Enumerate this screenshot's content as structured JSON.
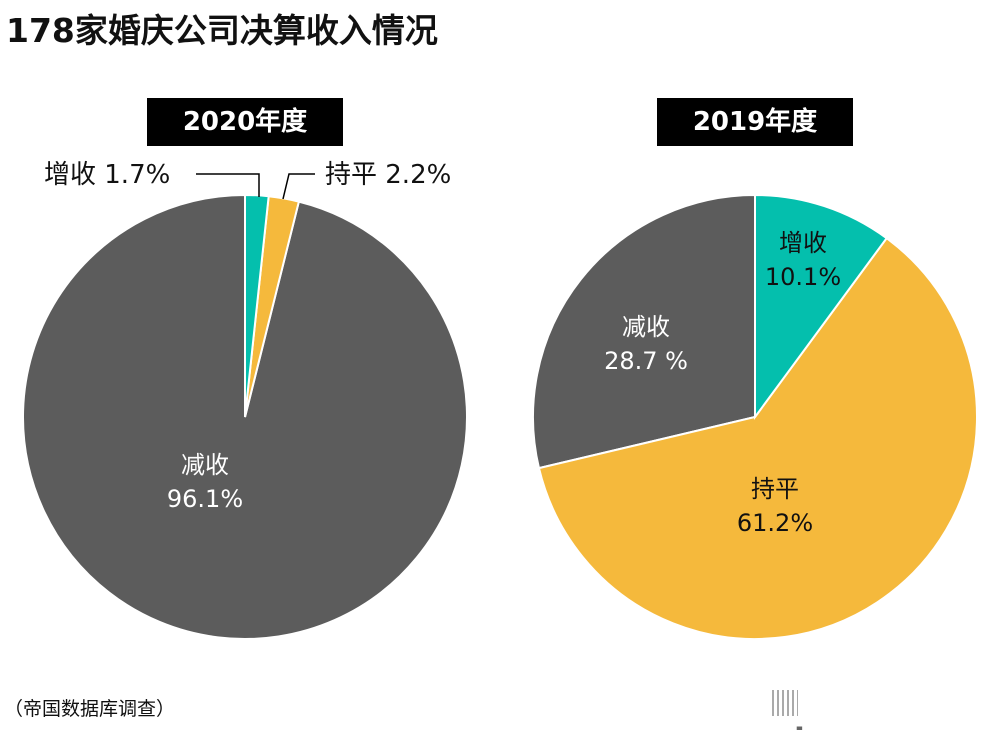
{
  "title": "178家婚庆公司决算收入情况",
  "source": "（帝国数据库调查）",
  "logo": {
    "name": "nippon",
    "dot": ".",
    "suffix": "com"
  },
  "colors": {
    "增收": "#04bfad",
    "持平": "#f5b93c",
    "减收": "#5c5c5c"
  },
  "chart_data": [
    {
      "type": "pie",
      "title": "2020年度",
      "categories": [
        "增收",
        "持平",
        "减收"
      ],
      "values": [
        1.7,
        2.2,
        96.1
      ],
      "labels": [
        "增收  1.7%",
        "持平  2.2%",
        "减收",
        "96.1%"
      ],
      "start": "top",
      "direction": "clockwise"
    },
    {
      "type": "pie",
      "title": "2019年度",
      "categories": [
        "增收",
        "持平",
        "减收"
      ],
      "values": [
        10.1,
        61.2,
        28.7
      ],
      "labels": [
        "增收",
        "10.1%",
        "持平",
        "61.2%",
        "减收",
        "28.7 %"
      ],
      "start": "top",
      "direction": "clockwise"
    }
  ]
}
